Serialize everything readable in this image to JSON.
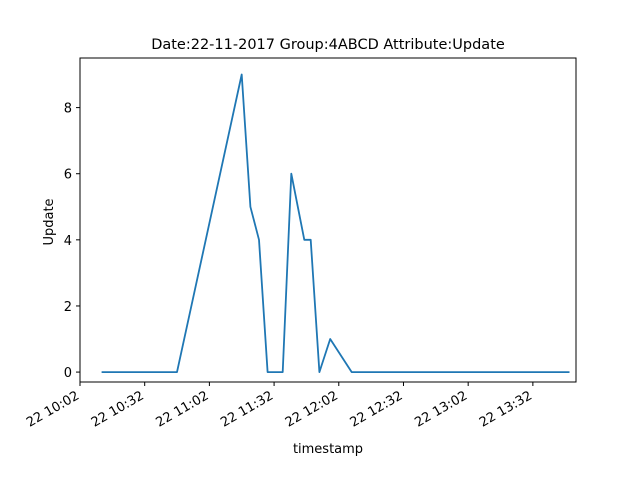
{
  "chart_data": {
    "type": "line",
    "title": "Date:22-11-2017  Group:4ABCD Attribute:Update",
    "xlabel": "timestamp",
    "ylabel": "Update",
    "x_axis_type": "datetime",
    "xlim": [
      "2017-11-22 10:02",
      "2017-11-22 13:52"
    ],
    "ylim": [
      -0.3,
      9.5
    ],
    "x_ticks": [
      "2017-11-22 10:02",
      "2017-11-22 10:32",
      "2017-11-22 11:02",
      "2017-11-22 11:32",
      "2017-11-22 12:02",
      "2017-11-22 12:32",
      "2017-11-22 13:02",
      "2017-11-22 13:32"
    ],
    "x_tick_labels": [
      "22 10:02",
      "22 10:32",
      "22 11:02",
      "22 11:32",
      "22 12:02",
      "22 12:32",
      "22 13:02",
      "22 13:32"
    ],
    "y_ticks": [
      0,
      2,
      4,
      6,
      8
    ],
    "grid": false,
    "series": [
      {
        "color": "#1f77b4",
        "x": [
          "2017-11-22 10:12",
          "2017-11-22 10:47",
          "2017-11-22 11:17",
          "2017-11-22 11:21",
          "2017-11-22 11:25",
          "2017-11-22 11:29",
          "2017-11-22 11:36",
          "2017-11-22 11:40",
          "2017-11-22 11:46",
          "2017-11-22 11:49",
          "2017-11-22 11:53",
          "2017-11-22 11:58",
          "2017-11-22 12:08",
          "2017-11-22 13:49"
        ],
        "values": [
          0,
          0,
          9,
          5,
          4,
          0,
          0,
          6,
          4,
          4,
          0,
          1,
          0,
          0
        ]
      }
    ]
  }
}
